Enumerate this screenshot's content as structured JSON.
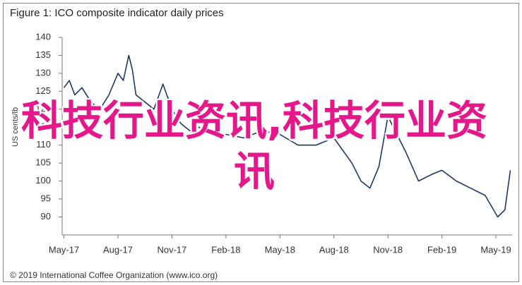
{
  "chart_data": {
    "type": "line",
    "title": "Figure 1: ICO composite indicator daily prices",
    "y_label": "US cents/lb",
    "source": "© 2019 International Coffee Organization (www.ico.org)",
    "overlay_text": "科技行业资讯,科技行业资讯",
    "x": [
      0,
      0.3,
      0.6,
      1,
      1.5,
      2,
      2.5,
      3,
      3.3,
      3.6,
      3.8,
      4,
      4.5,
      5,
      5.5,
      6,
      6.5,
      7,
      7.5,
      8,
      9,
      10,
      11,
      12,
      13,
      14,
      15,
      16,
      16.5,
      17,
      17.5,
      18,
      18.5,
      19,
      19.7,
      20.5,
      21,
      21.8,
      22.6,
      23.4,
      24.1,
      24.5,
      24.8
    ],
    "series": [
      {
        "name": "ICO composite indicator",
        "color": "#1f3864",
        "values": [
          126,
          128,
          124,
          126,
          122,
          120,
          124,
          130,
          128,
          135,
          131,
          124,
          122,
          120,
          127,
          120,
          116,
          114,
          115,
          113,
          113,
          112,
          114,
          113,
          110,
          110,
          112,
          105,
          100,
          98,
          104,
          118,
          113,
          108,
          100,
          102,
          103,
          100,
          98,
          96,
          90,
          92,
          103
        ]
      }
    ],
    "xlim": [
      -0.1,
      24.9
    ],
    "xticks": [
      {
        "value": 0,
        "label": "May-17"
      },
      {
        "value": 3,
        "label": "Aug-17"
      },
      {
        "value": 6,
        "label": "Nov-17"
      },
      {
        "value": 9,
        "label": "Feb-18"
      },
      {
        "value": 12,
        "label": "May-18"
      },
      {
        "value": 15,
        "label": "Aug-18"
      },
      {
        "value": 18,
        "label": "Nov-18"
      },
      {
        "value": 21,
        "label": "Feb-19"
      },
      {
        "value": 24,
        "label": "May-19"
      }
    ],
    "ylim": [
      85,
      140
    ],
    "yticks": [
      90,
      95,
      100,
      105,
      110,
      115,
      120,
      125,
      130,
      135,
      140
    ],
    "grid": false
  }
}
